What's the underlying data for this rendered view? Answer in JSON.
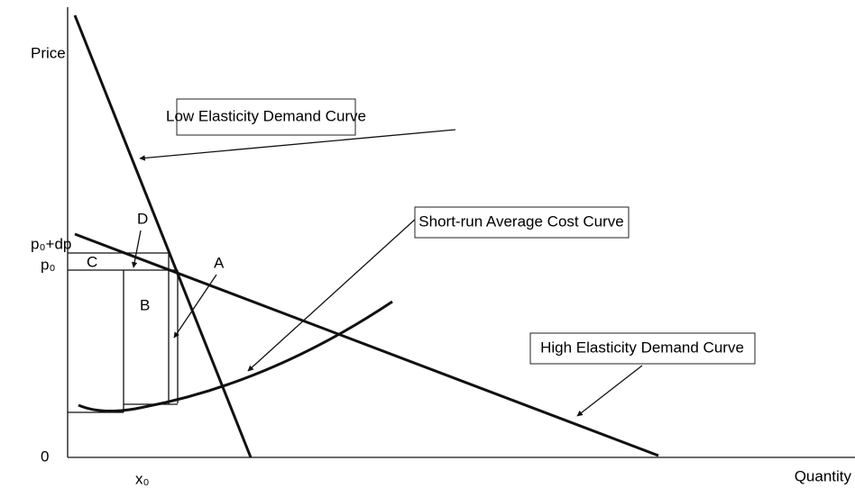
{
  "axes": {
    "y_label": "Price",
    "x_label": "Quantity",
    "origin": "0",
    "x0": "x₀",
    "p0_dp": "p₀+dp",
    "p0": "p₀"
  },
  "regions": {
    "a": "A",
    "b": "B",
    "c": "C",
    "d": "D"
  },
  "curves": {
    "low": "Low Elasticity Demand Curve",
    "cost": "Short-run Average Cost Curve",
    "high": "High Elasticity Demand Curve"
  }
}
